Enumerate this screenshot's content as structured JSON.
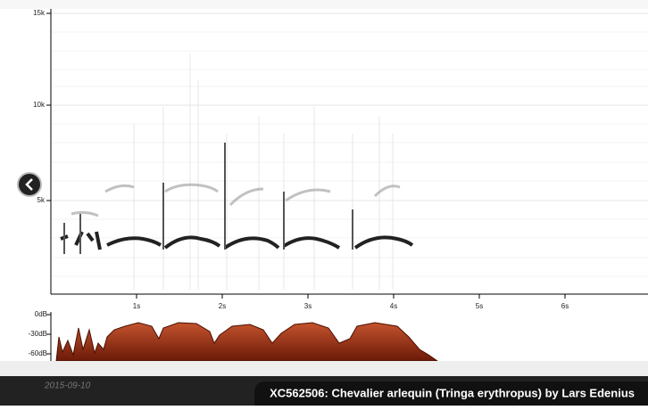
{
  "spectrogram": {
    "frequency_ticks": [
      "15k",
      "10k",
      "5k"
    ],
    "time_ticks": [
      "1s",
      "2s",
      "3s",
      "4s",
      "5s",
      "6s"
    ]
  },
  "waveform": {
    "level_ticks": [
      "0dB",
      "-30dB",
      "-60dB"
    ]
  },
  "footer": {
    "date": "2015-09-10",
    "caption": "XC562506: Chevalier arlequin (Tringa erythropus) by Lars Edenius"
  }
}
